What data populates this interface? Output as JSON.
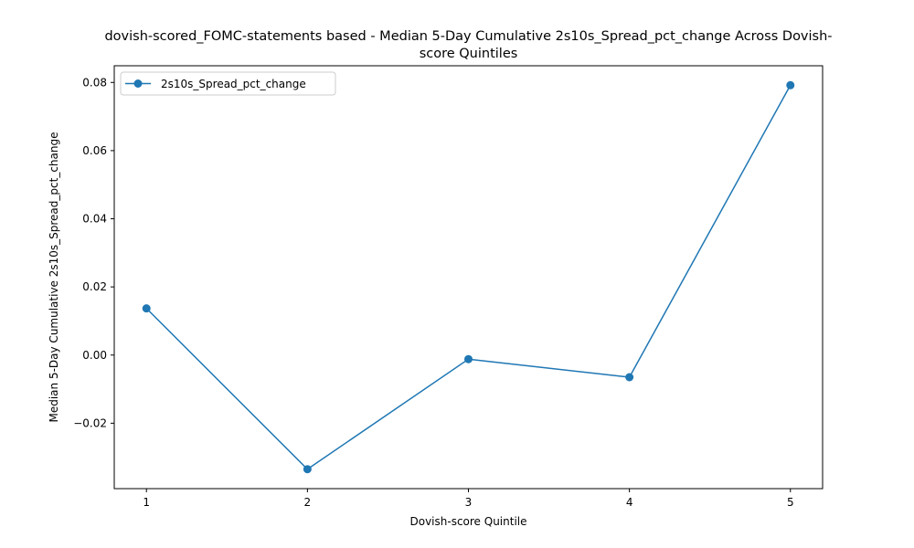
{
  "chart_data": {
    "type": "line",
    "title_lines": [
      "dovish-scored_FOMC-statements based - Median 5-Day Cumulative 2s10s_Spread_pct_change Across Dovish-",
      "score Quintiles"
    ],
    "xlabel": "Dovish-score Quintile",
    "ylabel": "Median 5-Day Cumulative 2s10s_Spread_pct_change",
    "x": [
      1,
      2,
      3,
      4,
      5
    ],
    "x_ticks": [
      "1",
      "2",
      "3",
      "4",
      "5"
    ],
    "y_ticks": [
      -0.02,
      0.0,
      0.02,
      0.04,
      0.06,
      0.08
    ],
    "y_tick_labels": [
      "−0.02",
      "0.00",
      "0.02",
      "0.04",
      "0.06",
      "0.08"
    ],
    "xlim": [
      0.8,
      5.2
    ],
    "ylim": [
      -0.0392,
      0.0849
    ],
    "grid": false,
    "legend_position": "upper-left",
    "series": [
      {
        "name": "2s10s_Spread_pct_change",
        "color": "#1f77b4",
        "marker": "circle",
        "values": [
          0.0137,
          -0.0335,
          -0.0012,
          -0.0065,
          0.0792
        ]
      }
    ]
  }
}
